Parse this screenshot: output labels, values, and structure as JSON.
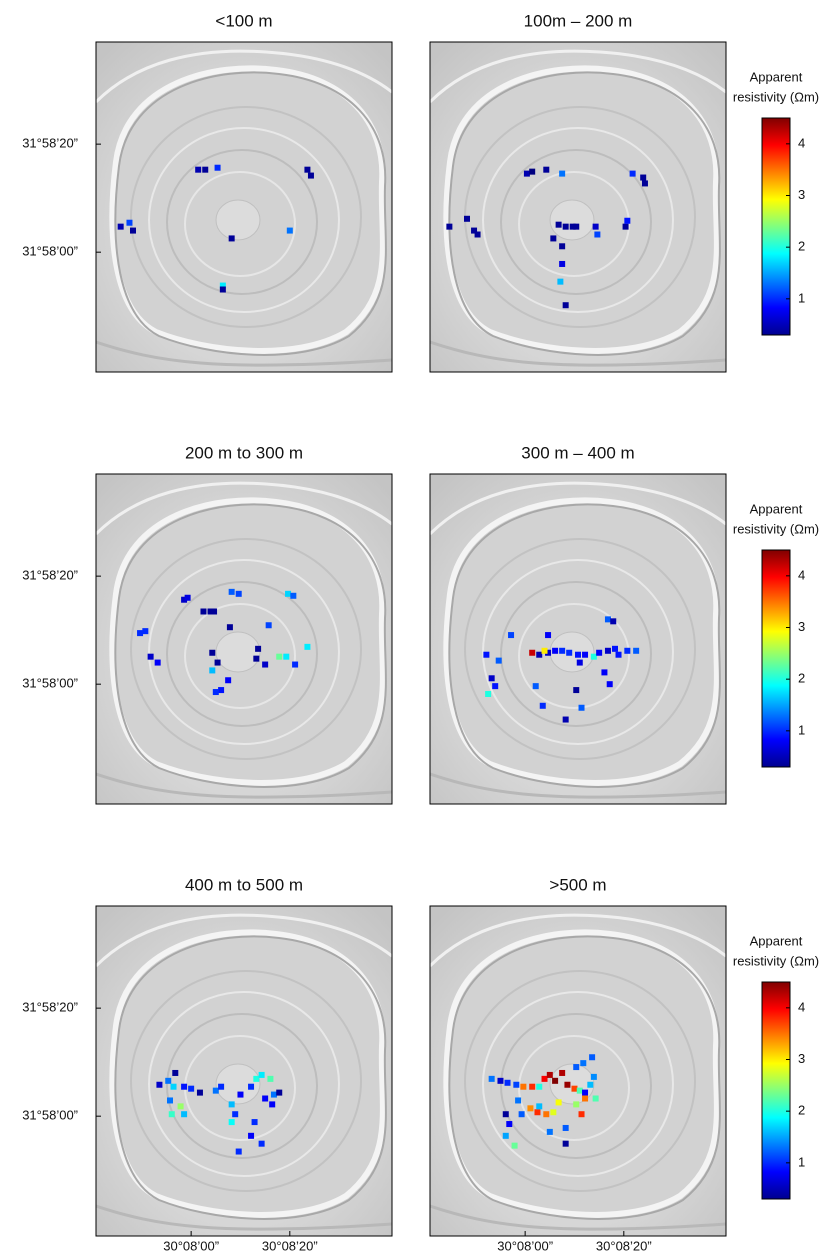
{
  "chart_data": [
    {
      "type": "scatter",
      "title": "<100 m",
      "colormap": "jet",
      "clim": [
        0.3,
        4.5
      ],
      "xlim": [
        30.1279,
        30.1447
      ],
      "ylim": [
        31.9606,
        31.9774
      ],
      "yticks": [
        {
          "value": 31.9722,
          "label": "31°58’20”"
        },
        {
          "value": 31.9667,
          "label": "31°58’00”"
        }
      ],
      "x": [
        30.1337,
        30.1341,
        30.1348,
        30.1399,
        30.1401,
        30.1293,
        30.1298,
        30.13,
        30.1356,
        30.1389,
        30.1351,
        30.1351
      ],
      "y": [
        31.9709,
        31.9709,
        31.971,
        31.9709,
        31.9706,
        31.968,
        31.9682,
        31.9678,
        31.9674,
        31.9678,
        31.965,
        31.9648
      ],
      "values": [
        0.5,
        0.4,
        1.0,
        0.4,
        0.4,
        0.5,
        1.1,
        0.4,
        0.4,
        1.3,
        1.8,
        0.4
      ]
    },
    {
      "type": "scatter",
      "title": "100m – 200 m",
      "colormap": "jet",
      "clim": [
        0.3,
        4.5
      ],
      "xlim": [
        30.1279,
        30.1447
      ],
      "ylim": [
        31.9606,
        31.9774
      ],
      "colorbar": {
        "title": [
          "Apparent",
          "resistivity (Ωm)"
        ],
        "ticks": [
          1,
          2,
          3,
          4
        ]
      },
      "x": [
        30.129,
        30.13,
        30.1304,
        30.1306,
        30.1334,
        30.1337,
        30.1345,
        30.1354,
        30.1352,
        30.1356,
        30.136,
        30.1362,
        30.1349,
        30.1354,
        30.1354,
        30.1353,
        30.1356,
        30.1373,
        30.1374,
        30.139,
        30.1391,
        30.1394,
        30.1401,
        30.14
      ],
      "y": [
        31.968,
        31.9684,
        31.9678,
        31.9676,
        31.9707,
        31.9708,
        31.9709,
        31.9707,
        31.9681,
        31.968,
        31.968,
        31.968,
        31.9674,
        31.967,
        31.9661,
        31.9652,
        31.964,
        31.968,
        31.9676,
        31.968,
        31.9683,
        31.9707,
        31.9702,
        31.9705
      ],
      "values": [
        0.4,
        0.4,
        0.4,
        0.4,
        0.5,
        0.3,
        0.4,
        1.3,
        0.4,
        0.4,
        0.4,
        0.4,
        0.4,
        0.4,
        0.7,
        1.6,
        0.4,
        0.6,
        1.1,
        0.4,
        0.9,
        1.0,
        0.4,
        0.4
      ]
    },
    {
      "type": "scatter",
      "title": "200 m to 300 m",
      "colormap": "jet",
      "clim": [
        0.3,
        4.5
      ],
      "xlim": [
        30.1279,
        30.1447
      ],
      "ylim": [
        31.9606,
        31.9774
      ],
      "yticks": [
        {
          "value": 31.9722,
          "label": "31°58’20”"
        },
        {
          "value": 31.9667,
          "label": "31°58’00”"
        }
      ],
      "x": [
        30.1329,
        30.1331,
        30.134,
        30.1344,
        30.1346,
        30.1356,
        30.136,
        30.1355,
        30.1304,
        30.1307,
        30.131,
        30.1314,
        30.1345,
        30.1348,
        30.1345,
        30.1354,
        30.135,
        30.1347,
        30.1371,
        30.137,
        30.1375,
        30.1383,
        30.1387,
        30.1392,
        30.1399,
        30.1388,
        30.1391,
        30.1377
      ],
      "y": [
        31.971,
        31.9711,
        31.9704,
        31.9704,
        31.9704,
        31.9714,
        31.9713,
        31.9696,
        31.9693,
        31.9694,
        31.9681,
        31.9678,
        31.9683,
        31.9678,
        31.9674,
        31.9669,
        31.9664,
        31.9663,
        31.9685,
        31.968,
        31.9677,
        31.9681,
        31.9681,
        31.9677,
        31.9686,
        31.9713,
        31.9712,
        31.9697
      ],
      "values": [
        0.6,
        0.7,
        0.4,
        0.4,
        0.4,
        1.2,
        1.1,
        0.4,
        1.0,
        1.0,
        0.6,
        0.8,
        0.4,
        0.4,
        1.6,
        0.8,
        0.9,
        1.0,
        0.4,
        0.4,
        0.6,
        2.3,
        1.8,
        1.0,
        1.8,
        1.7,
        1.2,
        1.1
      ]
    },
    {
      "type": "scatter",
      "title": "300 m – 400 m",
      "colormap": "jet",
      "clim": [
        0.3,
        4.5
      ],
      "xlim": [
        30.1279,
        30.1447
      ],
      "ylim": [
        31.9606,
        31.9774
      ],
      "colorbar": {
        "title": [
          "Apparent",
          "resistivity (Ωm)"
        ],
        "ticks": [
          1,
          2,
          3,
          4
        ]
      },
      "x": [
        30.1337,
        30.1341,
        30.1346,
        30.135,
        30.1354,
        30.1358,
        30.1363,
        30.1367,
        30.1372,
        30.1375,
        30.138,
        30.1384,
        30.1391,
        30.1396,
        30.1346,
        30.1325,
        30.1311,
        30.1314,
        30.1312,
        30.1316,
        30.1318,
        30.1339,
        30.1343,
        30.1364,
        30.1362,
        30.1365,
        30.1356,
        30.1378,
        30.1381,
        30.1386,
        30.138,
        30.1383,
        30.1344
      ],
      "y": [
        31.9683,
        31.9682,
        31.9683,
        31.9684,
        31.9684,
        31.9683,
        31.9682,
        31.9682,
        31.9681,
        31.9683,
        31.9684,
        31.9685,
        31.9684,
        31.9684,
        31.9692,
        31.9692,
        31.9682,
        31.967,
        31.9662,
        31.9666,
        31.9679,
        31.9666,
        31.9656,
        31.9678,
        31.9664,
        31.9655,
        31.9649,
        31.9673,
        31.9667,
        31.9682,
        31.97,
        31.9699,
        31.9684
      ],
      "values": [
        4.2,
        0.5,
        0.6,
        0.8,
        1.0,
        1.0,
        0.9,
        0.8,
        2.0,
        0.8,
        0.6,
        0.9,
        1.0,
        1.2,
        0.8,
        1.1,
        0.9,
        0.6,
        2.0,
        0.9,
        1.2,
        1.2,
        1.0,
        0.7,
        0.4,
        1.2,
        0.5,
        0.8,
        0.8,
        0.9,
        1.2,
        0.5,
        3.0
      ]
    },
    {
      "type": "scatter",
      "title": "400 m to 500 m",
      "colormap": "jet",
      "clim": [
        0.3,
        4.5
      ],
      "xlim": [
        30.1279,
        30.1447
      ],
      "ylim": [
        31.9606,
        31.9774
      ],
      "xticks": [
        {
          "value": 30.1333,
          "label": "30°08’00”"
        },
        {
          "value": 30.1389,
          "label": "30°08’20”"
        }
      ],
      "yticks": [
        {
          "value": 31.9722,
          "label": "31°58’20”"
        },
        {
          "value": 31.9667,
          "label": "31°58’00”"
        }
      ],
      "x": [
        30.1315,
        30.132,
        30.1324,
        30.1323,
        30.1329,
        30.1333,
        30.1338,
        30.1321,
        30.1322,
        30.1327,
        30.1329,
        30.1347,
        30.135,
        30.1356,
        30.1358,
        30.1356,
        30.1361,
        30.1367,
        30.137,
        30.1373,
        30.1378,
        30.1375,
        30.138,
        30.1383,
        30.1379,
        30.1369,
        30.1367,
        30.1373,
        30.136
      ],
      "y": [
        31.9683,
        31.9685,
        31.9689,
        31.9682,
        31.9682,
        31.9681,
        31.9679,
        31.9675,
        31.9668,
        31.9672,
        31.9668,
        31.968,
        31.9682,
        31.9673,
        31.9668,
        31.9664,
        31.9678,
        31.9682,
        31.9686,
        31.9688,
        31.9686,
        31.9676,
        31.9678,
        31.9679,
        31.9673,
        31.9664,
        31.9657,
        31.9653,
        31.9649
      ],
      "values": [
        0.6,
        1.3,
        0.4,
        1.7,
        0.9,
        1.0,
        0.4,
        1.3,
        2.1,
        2.5,
        1.6,
        1.3,
        1.0,
        1.6,
        1.0,
        1.9,
        0.8,
        1.0,
        2.0,
        1.8,
        2.2,
        0.8,
        1.3,
        0.4,
        0.8,
        1.0,
        0.8,
        1.0,
        1.0
      ]
    },
    {
      "type": "scatter",
      "title": ">500 m",
      "colormap": "jet",
      "clim": [
        0.3,
        4.5
      ],
      "xlim": [
        30.1279,
        30.1447
      ],
      "ylim": [
        31.9606,
        31.9774
      ],
      "xticks": [
        {
          "value": 30.1333,
          "label": "30°08’00”"
        },
        {
          "value": 30.1389,
          "label": "30°08’20”"
        }
      ],
      "colorbar": {
        "title": [
          "Apparent",
          "resistivity (Ωm)"
        ],
        "ticks": [
          1,
          2,
          3,
          4
        ]
      },
      "x": [
        30.1314,
        30.1319,
        30.1323,
        30.1328,
        30.1332,
        30.1337,
        30.1341,
        30.1344,
        30.1347,
        30.135,
        30.1354,
        30.1357,
        30.1361,
        30.1364,
        30.1367,
        30.1362,
        30.1366,
        30.1371,
        30.137,
        30.1373,
        30.1362,
        30.1365,
        30.1367,
        30.1372,
        30.1331,
        30.1336,
        30.134,
        30.1345,
        30.1349,
        30.1352,
        30.1341,
        30.1329,
        30.1324,
        30.1322,
        30.1327,
        30.1347,
        30.1356,
        30.1356,
        30.1322
      ],
      "y": [
        31.9686,
        31.9685,
        31.9684,
        31.9683,
        31.9682,
        31.9682,
        31.9682,
        31.9686,
        31.9688,
        31.9685,
        31.9689,
        31.9683,
        31.9681,
        31.968,
        31.9679,
        31.9692,
        31.9694,
        31.9697,
        31.9683,
        31.9676,
        31.9673,
        31.9668,
        31.9676,
        31.9687,
        31.9668,
        31.9671,
        31.9669,
        31.9668,
        31.9669,
        31.9674,
        31.9672,
        31.9675,
        31.9663,
        31.9657,
        31.9652,
        31.9659,
        31.9661,
        31.9653,
        31.9668
      ],
      "values": [
        1.3,
        0.6,
        1.0,
        1.1,
        3.5,
        3.8,
        2.0,
        4.0,
        4.3,
        4.5,
        4.3,
        4.4,
        3.7,
        2.2,
        0.8,
        1.2,
        1.3,
        1.2,
        1.6,
        2.2,
        2.5,
        3.8,
        3.5,
        1.4,
        1.2,
        3.4,
        3.8,
        3.5,
        2.8,
        2.9,
        1.6,
        1.3,
        0.8,
        1.5,
        2.3,
        1.3,
        1.2,
        0.4,
        0.4
      ]
    }
  ]
}
